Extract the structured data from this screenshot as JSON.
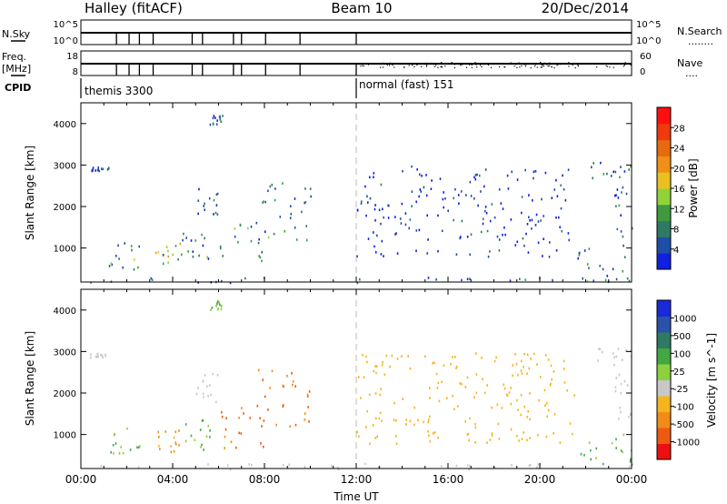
{
  "header": {
    "station": "Halley (fitACF)",
    "beam": "Beam 10",
    "date": "20/Dec/2014"
  },
  "strip1": {
    "left_label": "N.Sky",
    "left_ticks": [
      "10^5",
      "10^0"
    ],
    "right_ticks": [
      "10^5",
      "10^0"
    ],
    "right_label": "N.Search",
    "right_dots": "........"
  },
  "strip2": {
    "left_label_1": "Freq.",
    "left_label_2": "[MHz]",
    "left_ticks": [
      "18",
      "8"
    ],
    "right_ticks": [
      "60",
      "0"
    ],
    "right_label": "Nave",
    "right_dots": "...."
  },
  "cpid": {
    "label": "CPID",
    "modes": [
      {
        "text": "themis 3300",
        "start_hour": 0
      },
      {
        "text": "normal (fast) 151",
        "start_hour": 12
      }
    ]
  },
  "time_axis": {
    "label": "Time UT",
    "ticks": [
      "00:00",
      "04:00",
      "08:00",
      "12:00",
      "16:00",
      "20:00",
      "00:00"
    ]
  },
  "colors": {
    "power": [
      "#1020e0",
      "#1f4ea8",
      "#2f7a63",
      "#3f9a3f",
      "#8fd23a",
      "#e8c020",
      "#f09018",
      "#e86a10",
      "#ee3a0e",
      "#ff1010"
    ],
    "velocity": [
      "#ee1010",
      "#ee5a10",
      "#f08c18",
      "#f4b420",
      "#c8c8c8",
      "#8cd040",
      "#43a843",
      "#2f7a63",
      "#2a52a8",
      "#1a2ad8"
    ]
  },
  "chart_data": [
    {
      "type": "heatmap",
      "title": "",
      "ylabel": "Slant Range [km]",
      "xlabel": "",
      "xlim": [
        0,
        24
      ],
      "ylim": [
        180,
        4500
      ],
      "yticks": [
        1000,
        2000,
        3000,
        4000
      ],
      "colorbar": {
        "label": "Power [dB]",
        "range": [
          0,
          32
        ],
        "ticks": [
          4,
          8,
          12,
          16,
          20,
          24,
          28
        ]
      },
      "patches": [
        {
          "t0": 0.3,
          "t1": 24,
          "r0": 180,
          "r1": 320,
          "v": 6
        },
        {
          "t0": 0.4,
          "t1": 1.2,
          "r0": 2880,
          "r1": 2980,
          "v": 4
        },
        {
          "t0": 1.2,
          "t1": 2.6,
          "r0": 500,
          "r1": 1200,
          "v": 10
        },
        {
          "t0": 3.2,
          "t1": 4.4,
          "r0": 600,
          "r1": 1150,
          "v": 14
        },
        {
          "t0": 4.4,
          "t1": 5.6,
          "r0": 650,
          "r1": 1400,
          "v": 8
        },
        {
          "t0": 6.0,
          "t1": 8.2,
          "r0": 700,
          "r1": 1700,
          "v": 9
        },
        {
          "t0": 7.6,
          "t1": 10.0,
          "r0": 1200,
          "r1": 2600,
          "v": 6
        },
        {
          "t0": 5.0,
          "t1": 6.0,
          "r0": 1800,
          "r1": 2500,
          "v": 5
        },
        {
          "t0": 5.6,
          "t1": 6.2,
          "r0": 4000,
          "r1": 4250,
          "v": 5
        },
        {
          "t0": 12.0,
          "t1": 21.5,
          "r0": 800,
          "r1": 3000,
          "v": 3
        },
        {
          "t0": 21.6,
          "t1": 24.0,
          "r0": 200,
          "r1": 1100,
          "v": 8
        },
        {
          "t0": 22.0,
          "t1": 24.0,
          "r0": 2700,
          "r1": 3100,
          "v": 5
        },
        {
          "t0": 23.2,
          "t1": 24.0,
          "r0": 1300,
          "r1": 2500,
          "v": 6
        }
      ]
    },
    {
      "type": "heatmap",
      "title": "",
      "ylabel": "Slant Range [km]",
      "xlabel": "Time UT",
      "xlim": [
        0,
        24
      ],
      "ylim": [
        180,
        4500
      ],
      "yticks": [
        1000,
        2000,
        3000,
        4000
      ],
      "colorbar": {
        "label": "Velocity [m s^-1]",
        "ticks": [
          -1000,
          -500,
          -100,
          -25,
          25,
          100,
          500,
          1000
        ]
      },
      "patches": [
        {
          "t0": 0.3,
          "t1": 24,
          "r0": 180,
          "r1": 320,
          "v": 0
        },
        {
          "t0": 0.4,
          "t1": 1.2,
          "r0": 2880,
          "r1": 2980,
          "v": 0
        },
        {
          "t0": 1.2,
          "t1": 2.6,
          "r0": 500,
          "r1": 1200,
          "v": 80
        },
        {
          "t0": 3.2,
          "t1": 4.4,
          "r0": 600,
          "r1": 1150,
          "v": -100
        },
        {
          "t0": 4.4,
          "t1": 5.6,
          "r0": 650,
          "r1": 1400,
          "v": 120
        },
        {
          "t0": 6.0,
          "t1": 8.2,
          "r0": 700,
          "r1": 1700,
          "v": -300
        },
        {
          "t0": 7.6,
          "t1": 10.0,
          "r0": 1200,
          "r1": 2600,
          "v": -250
        },
        {
          "t0": 5.0,
          "t1": 6.0,
          "r0": 1800,
          "r1": 2500,
          "v": 0
        },
        {
          "t0": 5.6,
          "t1": 6.2,
          "r0": 4000,
          "r1": 4250,
          "v": 80
        },
        {
          "t0": 12.0,
          "t1": 21.5,
          "r0": 800,
          "r1": 3000,
          "v": -60
        },
        {
          "t0": 21.6,
          "t1": 24.0,
          "r0": 200,
          "r1": 1100,
          "v": 100
        },
        {
          "t0": 22.0,
          "t1": 24.0,
          "r0": 2700,
          "r1": 3100,
          "v": 0
        },
        {
          "t0": 23.2,
          "t1": 24.0,
          "r0": 1300,
          "r1": 2500,
          "v": 0
        }
      ]
    }
  ]
}
